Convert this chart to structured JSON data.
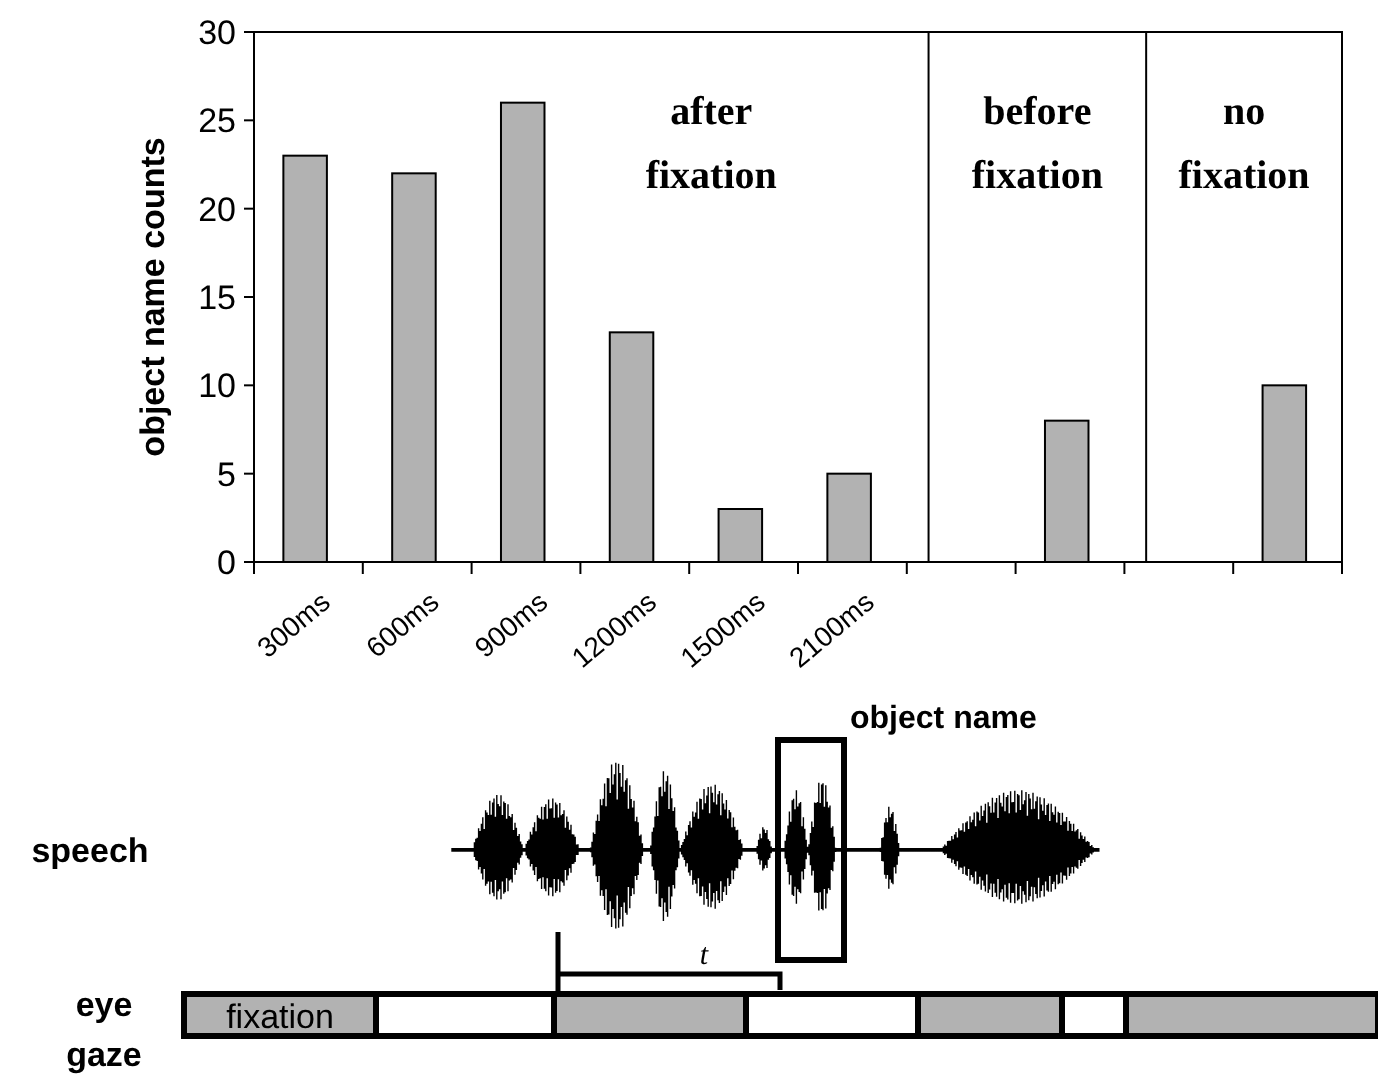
{
  "chart_data": {
    "type": "bar",
    "ylabel": "object name counts",
    "categories": [
      "300ms",
      "600ms",
      "900ms",
      "1200ms",
      "1500ms",
      "2100ms",
      null,
      null,
      null,
      null
    ],
    "values": [
      23,
      22,
      26,
      13,
      3,
      5,
      null,
      8,
      null,
      10
    ],
    "color": "#b2b2b2",
    "ylim": [
      0,
      30
    ],
    "yticks": [
      0,
      5,
      10,
      15,
      20,
      25,
      30
    ],
    "grid": false,
    "annotations": [
      "after fixation",
      "before fixation",
      "no fixation",
      "speech",
      "eye gaze",
      "fixation",
      "object name",
      "t"
    ]
  }
}
